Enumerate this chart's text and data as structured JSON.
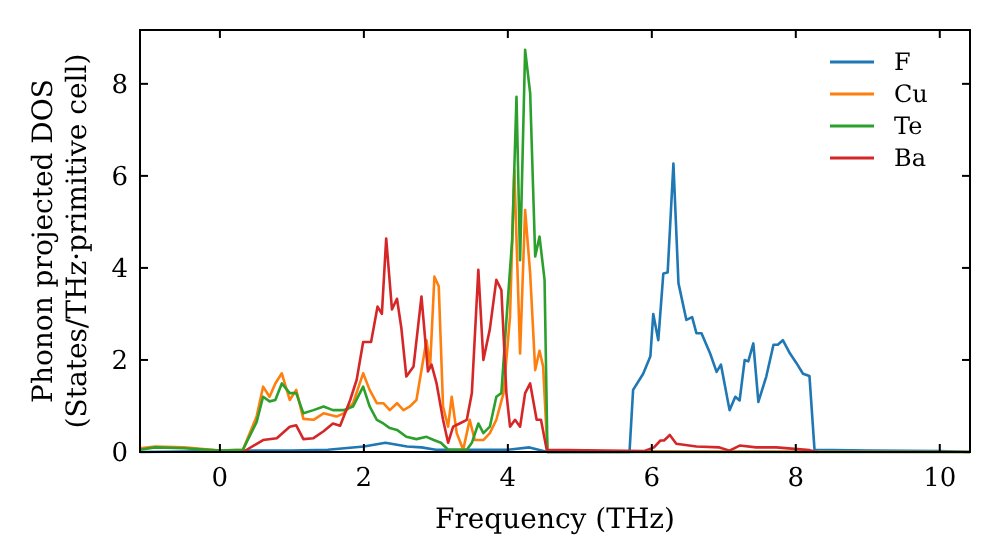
{
  "chart_data": {
    "type": "line",
    "xlabel": "Frequency (THz)",
    "ylabel": "Phonon projected DOS\n(States/THz·primitive cell)",
    "xlim": [
      -1.11,
      10.42
    ],
    "ylim": [
      0,
      9.17
    ],
    "xticks": [
      0,
      2,
      4,
      6,
      8,
      10
    ],
    "yticks": [
      0,
      2,
      4,
      6,
      8
    ],
    "legend": "top right",
    "grid": false,
    "series": [
      {
        "name": "F",
        "color": "#1f77b4",
        "x": [
          -1.11,
          0,
          0.5,
          1,
          1.5,
          2,
          2.3,
          2.6,
          2.8,
          3,
          3.5,
          4,
          4.3,
          4.55,
          5.69,
          5.74,
          5.88,
          5.98,
          6.02,
          6.09,
          6.16,
          6.22,
          6.3,
          6.37,
          6.48,
          6.56,
          6.62,
          6.69,
          6.81,
          6.9,
          6.96,
          7.08,
          7.16,
          7.22,
          7.29,
          7.34,
          7.41,
          7.48,
          7.59,
          7.69,
          7.75,
          7.82,
          7.92,
          8.01,
          8.1,
          8.19,
          8.26,
          9,
          10,
          10.42
        ],
        "values": [
          0,
          0.02,
          0.03,
          0.03,
          0.05,
          0.12,
          0.2,
          0.12,
          0.1,
          0.05,
          0.05,
          0.05,
          0.1,
          0,
          0,
          1.35,
          1.7,
          2.08,
          3.0,
          2.43,
          3.88,
          3.9,
          6.27,
          3.67,
          2.87,
          2.93,
          2.58,
          2.58,
          2.14,
          1.74,
          1.9,
          0.91,
          1.2,
          1.12,
          2.0,
          1.97,
          2.36,
          1.09,
          1.64,
          2.33,
          2.33,
          2.43,
          2.14,
          1.93,
          1.7,
          1.65,
          0.05,
          0.03,
          0.02,
          0
        ]
      },
      {
        "name": "Cu",
        "color": "#ff7f0e",
        "x": [
          -1.11,
          -0.9,
          -0.5,
          0,
          0.32,
          0.51,
          0.6,
          0.69,
          0.77,
          0.86,
          0.97,
          1.06,
          1.16,
          1.3,
          1.44,
          1.62,
          1.72,
          1.85,
          1.99,
          2.08,
          2.18,
          2.27,
          2.36,
          2.46,
          2.55,
          2.64,
          2.73,
          2.87,
          2.92,
          2.98,
          3.04,
          3.1,
          3.17,
          3.22,
          3.29,
          3.38,
          3.47,
          3.54,
          3.66,
          3.75,
          3.84,
          3.94,
          4.03,
          4.09,
          4.17,
          4.24,
          4.31,
          4.38,
          4.44,
          4.49,
          4.55,
          10.42
        ],
        "values": [
          0.08,
          0.12,
          0.1,
          0.03,
          0.05,
          0.77,
          1.42,
          1.2,
          1.49,
          1.71,
          1.13,
          1.35,
          0.72,
          0.7,
          0.84,
          0.77,
          0.84,
          1.06,
          1.71,
          1.35,
          1.06,
          1.06,
          0.91,
          1.06,
          0.91,
          0.99,
          1.13,
          2.43,
          1.86,
          3.81,
          3.6,
          0.99,
          0.55,
          1.2,
          0.41,
          0.05,
          0.7,
          0.26,
          0.26,
          0.41,
          0.7,
          1.28,
          2.94,
          6.13,
          2.14,
          5.26,
          3.88,
          1.78,
          2.2,
          1.86,
          0.02,
          0
        ]
      },
      {
        "name": "Te",
        "color": "#2ca02c",
        "x": [
          -1.11,
          -0.9,
          -0.5,
          0,
          0.32,
          0.51,
          0.6,
          0.69,
          0.77,
          0.86,
          0.97,
          1.06,
          1.16,
          1.3,
          1.44,
          1.57,
          1.72,
          1.85,
          1.99,
          2.08,
          2.18,
          2.27,
          2.36,
          2.46,
          2.59,
          2.73,
          2.87,
          2.97,
          3.07,
          3.17,
          3.43,
          3.5,
          3.59,
          3.66,
          3.75,
          3.84,
          3.91,
          3.98,
          4.06,
          4.12,
          4.17,
          4.24,
          4.31,
          4.38,
          4.44,
          4.51,
          4.55,
          10.42
        ],
        "values": [
          0.05,
          0.1,
          0.08,
          0.03,
          0.05,
          0.65,
          1.2,
          1.1,
          1.13,
          1.49,
          1.28,
          1.28,
          0.84,
          0.91,
          0.99,
          0.91,
          0.91,
          0.99,
          1.42,
          0.99,
          0.7,
          0.62,
          0.52,
          0.48,
          0.33,
          0.28,
          0.33,
          0.26,
          0.2,
          0.05,
          0.05,
          0.2,
          0.62,
          0.41,
          0.55,
          1.2,
          1.28,
          2.87,
          4.61,
          7.72,
          4.17,
          8.74,
          7.8,
          4.25,
          4.68,
          3.74,
          0,
          0
        ]
      },
      {
        "name": "Ba",
        "color": "#d62728",
        "x": [
          0.32,
          0.6,
          0.79,
          0.97,
          1.06,
          1.16,
          1.3,
          1.44,
          1.57,
          1.67,
          1.81,
          1.9,
          1.99,
          2.1,
          2.19,
          2.25,
          2.31,
          2.39,
          2.46,
          2.52,
          2.59,
          2.69,
          2.8,
          2.89,
          2.94,
          3.01,
          3.1,
          3.17,
          3.24,
          3.33,
          3.43,
          3.5,
          3.59,
          3.66,
          3.75,
          3.84,
          3.91,
          3.98,
          4.03,
          4.1,
          4.17,
          4.24,
          4.31,
          4.4,
          4.46,
          4.54,
          5.9,
          6.03,
          6.12,
          6.17,
          6.25,
          6.34,
          6.62,
          6.94,
          7.08,
          7.22,
          7.45,
          7.73,
          8.19,
          8.3
        ],
        "values": [
          0,
          0.26,
          0.3,
          0.55,
          0.58,
          0.28,
          0.3,
          0.45,
          0.62,
          0.57,
          1.13,
          1.57,
          2.39,
          2.39,
          3.16,
          3.0,
          4.64,
          3.1,
          3.33,
          2.7,
          1.64,
          1.86,
          3.38,
          1.75,
          1.9,
          1.49,
          0.7,
          0.2,
          0.55,
          0.62,
          0.7,
          1.28,
          3.96,
          2.0,
          2.67,
          3.74,
          3.52,
          1.28,
          0.55,
          0.7,
          0.55,
          1.28,
          1.49,
          0.7,
          0.7,
          0.05,
          0.02,
          0.1,
          0.25,
          0.25,
          0.37,
          0.18,
          0.12,
          0.1,
          0.03,
          0.14,
          0.1,
          0.1,
          0.04,
          0
        ]
      }
    ]
  }
}
